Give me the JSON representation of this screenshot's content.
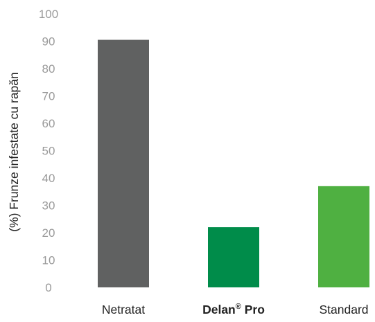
{
  "chart_data": {
    "type": "bar",
    "ylabel": "(%) Frunze infestate cu rapăn",
    "ylim": [
      0,
      100
    ],
    "yticks": [
      0,
      10,
      20,
      30,
      40,
      50,
      60,
      70,
      80,
      90,
      100
    ],
    "grid": false,
    "legend": "none",
    "categories": [
      {
        "label": "Netratat",
        "bold": false,
        "superscript": ""
      },
      {
        "label": "Delan",
        "bold": true,
        "superscript": "®",
        "suffix": " Pro"
      },
      {
        "label": "Standard",
        "bold": false,
        "superscript": ""
      }
    ],
    "values": [
      90.5,
      22,
      37
    ],
    "colors": [
      "#606161",
      "#008c4a",
      "#4fb041"
    ]
  },
  "style": {
    "tick_color": "#9a9a9a",
    "label_color": "#222222"
  }
}
